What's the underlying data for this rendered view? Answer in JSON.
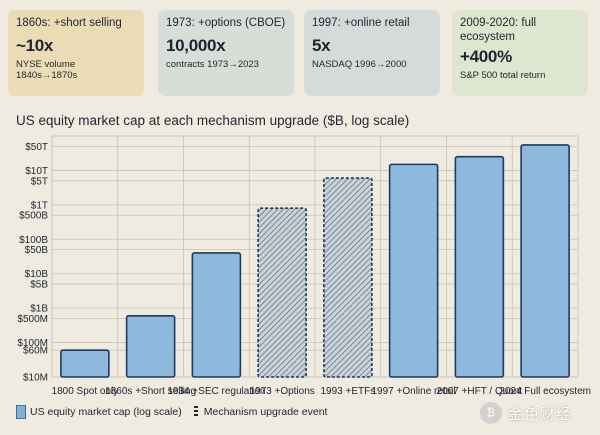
{
  "cards": [
    {
      "event": "1860s: +short selling",
      "metric": "~10x",
      "note": "NYSE volume 1840s→1870s",
      "bg": "#ecdcb6"
    },
    {
      "event": "1973: +options (CBOE)",
      "metric": "10,000x",
      "note": "contracts 1973→2023",
      "bg": "#d9ddd8"
    },
    {
      "event": "1997: +online retail",
      "metric": "5x",
      "note": "NASDAQ 1996→2000",
      "bg": "#d6dbda"
    },
    {
      "event": "2009-2020: full ecosystem",
      "metric": "+400%",
      "note": "S&P 500 total return",
      "bg": "#dfe6cf"
    }
  ],
  "chart_title": "US equity market cap at each mechanism upgrade ($B, log scale)",
  "chart_data": {
    "type": "bar",
    "title": "US equity market cap at each mechanism upgrade ($B, log scale)",
    "y_scale": "log",
    "ylim_billions": [
      0.01,
      100000
    ],
    "y_ticks": [
      {
        "label": "$50T",
        "value": 50000
      },
      {
        "label": "$10T",
        "value": 10000
      },
      {
        "label": "$5T",
        "value": 5000
      },
      {
        "label": "$1T",
        "value": 1000
      },
      {
        "label": "$500B",
        "value": 500
      },
      {
        "label": "$100B",
        "value": 100
      },
      {
        "label": "$50B",
        "value": 50
      },
      {
        "label": "$10B",
        "value": 10
      },
      {
        "label": "$5B",
        "value": 5
      },
      {
        "label": "$1B",
        "value": 1
      },
      {
        "label": "$500M",
        "value": 0.5
      },
      {
        "label": "$100M",
        "value": 0.1
      },
      {
        "label": "$60M",
        "value": 0.06
      },
      {
        "label": "$10M",
        "value": 0.01
      }
    ],
    "categories": [
      "1800 Spot only",
      "1860s +Short selling",
      "1934 +SEC regulation",
      "1973 +Options",
      "1993 +ETFs",
      "1997 +Online retail",
      "2007 +HFT / Quant",
      "2024 Full ecosystem"
    ],
    "values": [
      0.06,
      0.6,
      40,
      800,
      6000,
      15000,
      25000,
      55000
    ],
    "mechanism_event": [
      false,
      false,
      false,
      true,
      true,
      false,
      false,
      false
    ],
    "grid": true,
    "legend_position": "bottom-left",
    "legend": [
      "US equity market cap (log scale)",
      "Mechanism upgrade event"
    ]
  },
  "colors": {
    "bar_fill": "#8fb8dd",
    "bar_stroke": "#1e3a5c",
    "event_fill": "#c9d3d9",
    "grid": "#c8c3b3",
    "paper": "#efebe0"
  },
  "legend": {
    "series_label": "US equity market cap (log scale)",
    "event_label": "Mechanism upgrade event"
  },
  "watermark": {
    "text": "金色财经"
  }
}
